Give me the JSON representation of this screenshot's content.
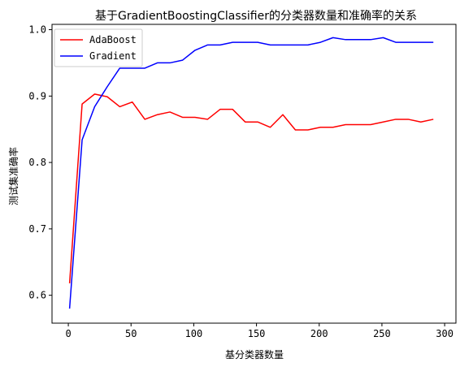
{
  "chart_data": {
    "type": "line",
    "title": "基于GradientBoostingClassifier的分类器数量和准确率的关系",
    "xlabel": "基分类器数量",
    "ylabel": "测试集准确率",
    "xlim": [
      -13,
      309
    ],
    "ylim": [
      0.558,
      1.008
    ],
    "xticks": [
      0,
      50,
      100,
      150,
      200,
      250,
      300
    ],
    "xtick_labels": [
      "0",
      "50",
      "100",
      "150",
      "200",
      "250",
      "300"
    ],
    "yticks": [
      0.6,
      0.7,
      0.8,
      0.9,
      1.0
    ],
    "ytick_labels": [
      "0.6",
      "0.7",
      "0.8",
      "0.9",
      "1.0"
    ],
    "grid": false,
    "legend_position": "top-left",
    "x": [
      1,
      11,
      21,
      31,
      41,
      51,
      61,
      71,
      81,
      91,
      101,
      111,
      121,
      131,
      141,
      151,
      161,
      171,
      181,
      191,
      201,
      211,
      221,
      231,
      241,
      251,
      261,
      271,
      281,
      291
    ],
    "series": [
      {
        "name": "AdaBoost",
        "color": "#ff0000",
        "values": [
          0.618,
          0.888,
          0.903,
          0.899,
          0.884,
          0.891,
          0.865,
          0.872,
          0.876,
          0.868,
          0.868,
          0.865,
          0.88,
          0.88,
          0.861,
          0.861,
          0.853,
          0.872,
          0.849,
          0.849,
          0.853,
          0.853,
          0.857,
          0.857,
          0.857,
          0.861,
          0.865,
          0.865,
          0.861,
          0.865
        ]
      },
      {
        "name": "Gradient",
        "color": "#0000ff",
        "values": [
          0.58,
          0.834,
          0.884,
          0.914,
          0.942,
          0.942,
          0.942,
          0.95,
          0.95,
          0.954,
          0.969,
          0.977,
          0.977,
          0.981,
          0.981,
          0.981,
          0.977,
          0.977,
          0.977,
          0.977,
          0.981,
          0.988,
          0.985,
          0.985,
          0.985,
          0.988,
          0.981,
          0.981,
          0.981,
          0.981
        ]
      }
    ]
  }
}
